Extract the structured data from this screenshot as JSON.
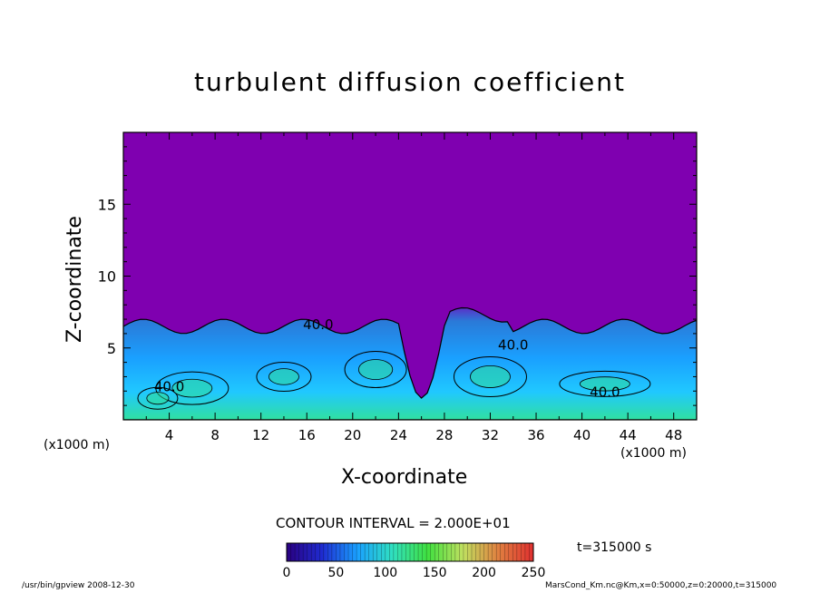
{
  "chart_data": {
    "type": "heatmap",
    "title": "turbulent diffusion coefficient",
    "xlabel": "X-coordinate",
    "ylabel": "Z-coordinate",
    "x_unit_label": "(x1000 m)",
    "x_unit_label_secondary": "(x1000 m)",
    "xlim": [
      0,
      50
    ],
    "ylim": [
      0,
      20
    ],
    "x_ticks": [
      4,
      8,
      12,
      16,
      20,
      24,
      28,
      32,
      36,
      40,
      44,
      48
    ],
    "y_ticks": [
      5,
      10,
      15
    ],
    "contour_interval_label": "CONTOUR INTERVAL = 2.000E+01",
    "contour_labels": [
      {
        "text": "40.0",
        "x": 17,
        "z": 6.3
      },
      {
        "text": "40.0",
        "x": 34,
        "z": 4.9
      },
      {
        "text": "40.0",
        "x": 42,
        "z": 1.6
      },
      {
        "text": "40.0",
        "x": 4,
        "z": 2.0
      }
    ],
    "time_label": "t=315000 s",
    "colorbar": {
      "min": 0,
      "max": 250,
      "ticks": [
        0,
        50,
        100,
        150,
        200,
        250
      ],
      "colors": [
        "#2a0080",
        "#1f2bd0",
        "#1aa0ff",
        "#30e0c0",
        "#40e040",
        "#c0e060",
        "#e08040",
        "#e03030"
      ]
    },
    "background_color": "#7f00b0",
    "turbulent_layer_top_z": 6.5,
    "footer_left": "/usr/bin/gpview   2008-12-30",
    "footer_right": "MarsCond_Km.nc@Km,x=0:50000,z=0:20000,t=315000"
  }
}
